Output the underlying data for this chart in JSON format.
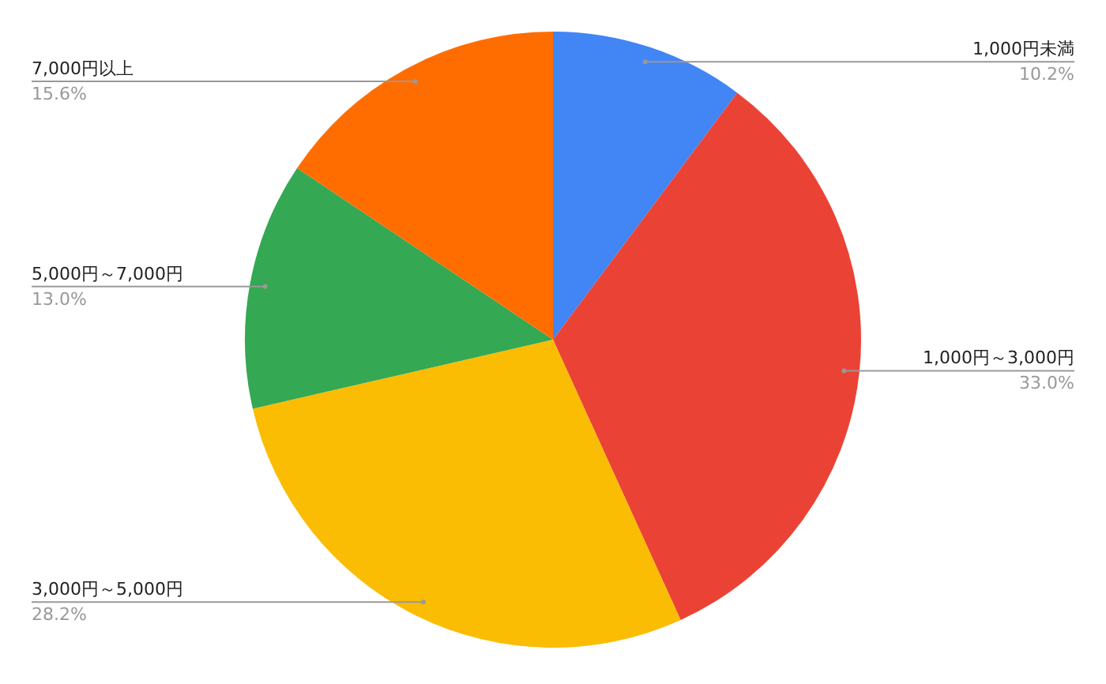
{
  "chart_data": {
    "type": "pie",
    "categories": [
      "1,000円未満",
      "1,000円～3,000円",
      "3,000円～5,000円",
      "5,000円～7,000円",
      "7,000円以上"
    ],
    "values": [
      10.2,
      33.0,
      28.2,
      13.0,
      15.6
    ],
    "value_labels": [
      "10.2%",
      "33.0%",
      "28.2%",
      "13.0%",
      "15.6%"
    ],
    "colors": [
      "#4285f4",
      "#ea4335",
      "#fbbc04",
      "#34a853",
      "#ff6d01"
    ],
    "legend": false
  }
}
